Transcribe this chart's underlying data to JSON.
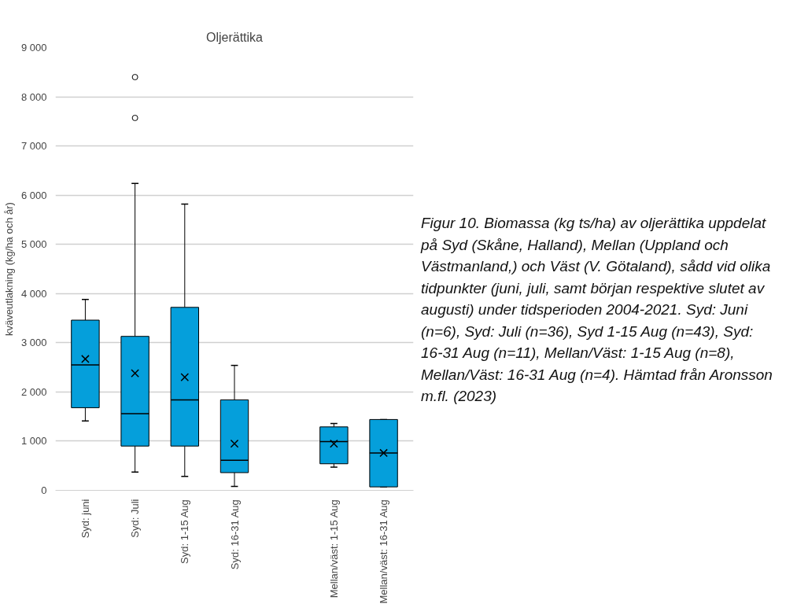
{
  "chart_data": {
    "type": "box",
    "title": "Oljerättika",
    "ylabel": "kväveutlakning (kg/ha och år)",
    "categories": [
      "Syd: juni",
      "Syd: Juli",
      "Syd: 1-15 Aug",
      "Syd: 16-31 Aug",
      null,
      "Mellan/väst: 1-15 Aug",
      "Mellan/väst: 16-31 Aug"
    ],
    "color": "#059fdb",
    "boxes": [
      {
        "low": 1410,
        "q1": 1680,
        "median": 2550,
        "q3": 3460,
        "high": 3880,
        "mean": 2670
      },
      {
        "low": 370,
        "q1": 900,
        "median": 1560,
        "q3": 3130,
        "high": 6240,
        "mean": 2380,
        "outliers": [
          7570,
          8400
        ]
      },
      {
        "low": 285,
        "q1": 900,
        "median": 1840,
        "q3": 3720,
        "high": 5820,
        "mean": 2300
      },
      {
        "low": 80,
        "q1": 360,
        "median": 610,
        "q3": 1840,
        "high": 2540,
        "mean": 950
      },
      null,
      {
        "low": 470,
        "q1": 540,
        "median": 990,
        "q3": 1290,
        "high": 1360,
        "mean": 950
      },
      {
        "low": 70,
        "q1": 70,
        "median": 760,
        "q3": 1440,
        "high": 1440,
        "mean": 760
      }
    ],
    "ylim": [
      0,
      9000
    ],
    "yticks": [
      0,
      {
        "value": 1000,
        "label": "1 000"
      },
      {
        "value": 2000,
        "label": "2 000"
      },
      {
        "value": 3000,
        "label": "3 000"
      },
      {
        "value": 4000,
        "label": "4 000"
      },
      {
        "value": 5000,
        "label": "5 000"
      },
      {
        "value": 6000,
        "label": "6 000"
      },
      {
        "value": 7000,
        "label": "7 000"
      },
      {
        "value": 8000,
        "label": "8 000"
      },
      {
        "value": 9000,
        "label": "9 000"
      }
    ],
    "grid": "y",
    "annotations": [
      "Figur 10. Biomassa (kg ts/ha) av oljerättika uppdelat på Syd (Skåne, Halland), Mellan (Uppland och Västmanland,) och Väst (V. Götaland), sådd vid olika tidpunkter (juni, juli, samt början respektive slutet av augusti) under tidsperioden 2004-2021. Syd: Juni (n=6), Syd: Juli (n=36), Syd 1-15 Aug (n=43), Syd: 16-31 Aug (n=11), Mellan/Väst: 1-15 Aug (n=8), Mellan/Väst: 16-31 Aug (n=4). Hämtad från Aronsson m.fl. (2023)"
    ]
  }
}
